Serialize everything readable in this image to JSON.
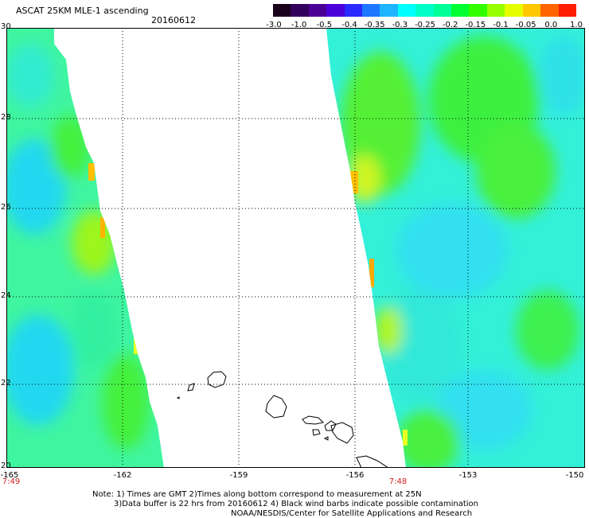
{
  "header": {
    "title": "ASCAT 25KM MLE-1 ascending",
    "date": "20160612"
  },
  "colorbar": {
    "labels": [
      "-3.0",
      "-1.0",
      "-0.5",
      "-0.4",
      "-0.35",
      "-0.3",
      "-0.25",
      "-0.2",
      "-0.15",
      "-0.1",
      "-0.05",
      "0.0",
      "1.0"
    ],
    "colors": [
      "#1a001a",
      "#32005a",
      "#4b0096",
      "#4a00d8",
      "#2a2aff",
      "#1e78ff",
      "#1eb4ff",
      "#00ffff",
      "#00ffc8",
      "#00ff96",
      "#00ff32",
      "#32ff00",
      "#96ff00",
      "#e6ff00",
      "#ffc800",
      "#ff6400",
      "#ff1e00"
    ]
  },
  "map": {
    "lat_labels": [
      "30",
      "28",
      "26",
      "24",
      "22",
      "20"
    ],
    "lon_labels": [
      "-165",
      "-162",
      "-159",
      "-156",
      "-153",
      "-150"
    ],
    "swath_times": [
      "7:49",
      "7:48"
    ],
    "colors": {
      "swath_cyan": "#33f0f0",
      "swath_green": "#3cf53c",
      "swath_yellow": "#e8ff20",
      "swath_orange": "#ffb400",
      "grid": "#000000",
      "time_label": "#d01e1e"
    }
  },
  "notes": {
    "line1": "Note: 1) Times are GMT 2)Times along bottom correspond to measurement at 25N",
    "line2": "3)Data buffer is 22 hrs from 20160612 4) Black wind barbs indicate possible contamination",
    "line3": "NOAA/NESDIS/Center for Satellite Applications and Research"
  }
}
